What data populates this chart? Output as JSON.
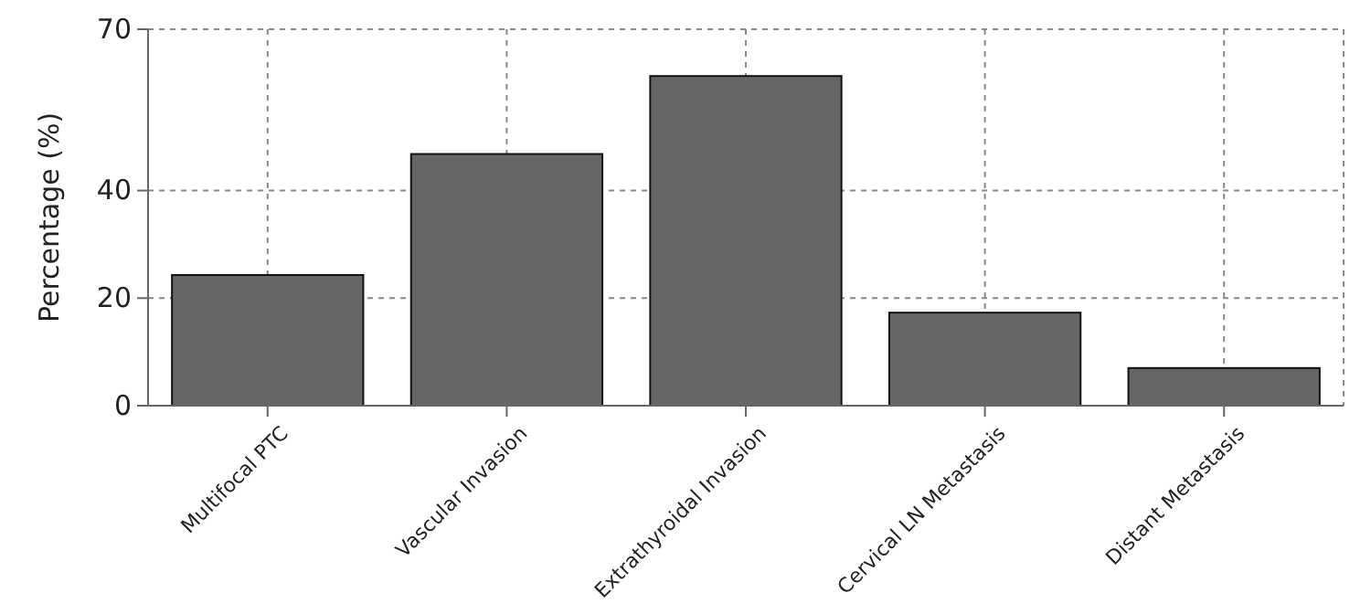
{
  "chart_data": {
    "type": "bar",
    "ylabel": "Percentage (%)",
    "categories": [
      "Multifocal PTC",
      "Vascular Invasion",
      "Extrathyroidal Invasion",
      "Cervical LN Metastasis",
      "Distant Metastasis"
    ],
    "values": [
      24.3,
      46.8,
      61.3,
      17.3,
      7
    ],
    "color": "#666666",
    "ylim": [
      0,
      70
    ],
    "yticks": [
      0,
      20,
      40,
      70
    ],
    "grid": true
  }
}
